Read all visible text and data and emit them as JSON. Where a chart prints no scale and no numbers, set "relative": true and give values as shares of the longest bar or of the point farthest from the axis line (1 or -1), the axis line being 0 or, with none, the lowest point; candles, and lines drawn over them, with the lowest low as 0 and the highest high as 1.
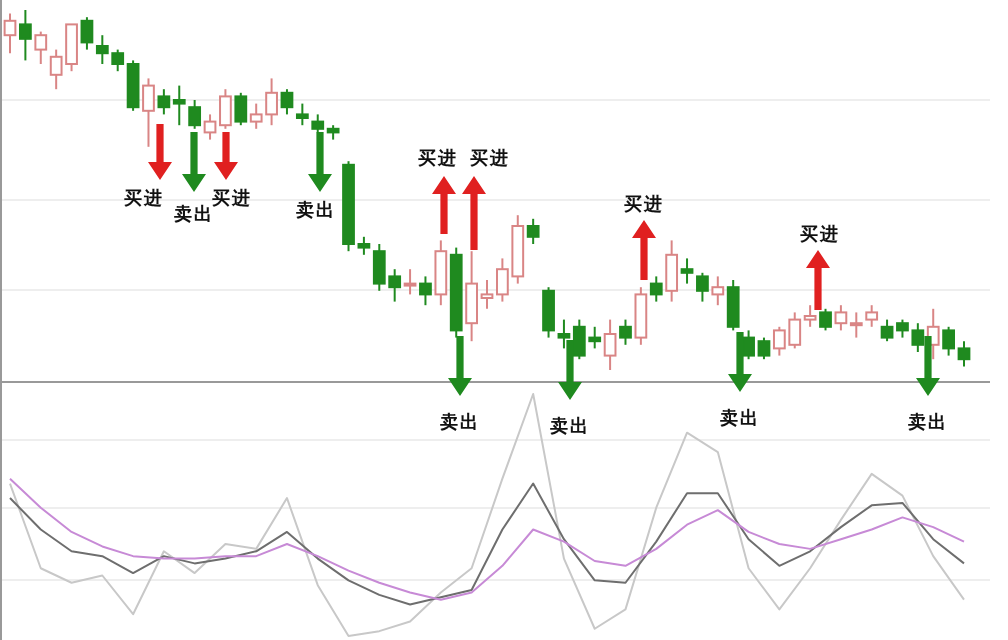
{
  "chart_data": [
    {
      "type": "candlestick",
      "relative": true,
      "categories": [
        null,
        null,
        null,
        null,
        null,
        null,
        null,
        null,
        null,
        null,
        null,
        null,
        null,
        null,
        null,
        null,
        null,
        null,
        null,
        null,
        null,
        null,
        null,
        null,
        null,
        null,
        null,
        null,
        null,
        null,
        null,
        null,
        null,
        null,
        null,
        null,
        null,
        null,
        null,
        null,
        null,
        null,
        null,
        null,
        null,
        null,
        null,
        null,
        null,
        null,
        null,
        null,
        null,
        null,
        null,
        null,
        null,
        null,
        null,
        null,
        null,
        null,
        null
      ],
      "ohlc": [
        [
          0.93,
          0.99,
          0.88,
          0.97
        ],
        [
          0.96,
          1.0,
          0.86,
          0.92
        ],
        [
          0.89,
          0.94,
          0.85,
          0.93
        ],
        [
          0.82,
          0.89,
          0.78,
          0.87
        ],
        [
          0.85,
          0.96,
          0.83,
          0.96
        ],
        [
          0.97,
          0.98,
          0.89,
          0.91
        ],
        [
          0.9,
          0.93,
          0.85,
          0.88
        ],
        [
          0.88,
          0.89,
          0.83,
          0.85
        ],
        [
          0.85,
          0.86,
          0.72,
          0.73
        ],
        [
          0.72,
          0.81,
          0.62,
          0.79
        ],
        [
          0.76,
          0.78,
          0.71,
          0.73
        ],
        [
          0.75,
          0.79,
          0.68,
          0.74
        ],
        [
          0.73,
          0.75,
          0.67,
          0.68
        ],
        [
          0.66,
          0.71,
          0.64,
          0.69
        ],
        [
          0.68,
          0.78,
          0.67,
          0.76
        ],
        [
          0.76,
          0.77,
          0.68,
          0.69
        ],
        [
          0.69,
          0.74,
          0.67,
          0.71
        ],
        [
          0.71,
          0.81,
          0.68,
          0.77
        ],
        [
          0.77,
          0.78,
          0.71,
          0.73
        ],
        [
          0.71,
          0.74,
          0.68,
          0.7
        ],
        [
          0.69,
          0.71,
          0.66,
          0.67
        ],
        [
          0.67,
          0.68,
          0.64,
          0.66
        ],
        [
          0.57,
          0.58,
          0.33,
          0.35
        ],
        [
          0.35,
          0.37,
          0.32,
          0.34
        ],
        [
          0.33,
          0.35,
          0.22,
          0.24
        ],
        [
          0.26,
          0.28,
          0.19,
          0.23
        ],
        [
          0.24,
          0.28,
          0.21,
          0.24
        ],
        [
          0.24,
          0.26,
          0.18,
          0.21
        ],
        [
          0.21,
          0.36,
          0.18,
          0.33
        ],
        [
          0.32,
          0.34,
          0.09,
          0.11
        ],
        [
          0.13,
          0.33,
          0.08,
          0.24
        ],
        [
          0.2,
          0.25,
          0.17,
          0.21
        ],
        [
          0.21,
          0.31,
          0.19,
          0.28
        ],
        [
          0.26,
          0.43,
          0.24,
          0.4
        ],
        [
          0.4,
          0.42,
          0.35,
          0.37
        ],
        [
          0.22,
          0.23,
          0.09,
          0.11
        ],
        [
          0.1,
          0.14,
          0.06,
          0.09
        ],
        [
          0.12,
          0.14,
          0.03,
          0.04
        ],
        [
          0.09,
          0.12,
          0.06,
          0.08
        ],
        [
          0.04,
          0.14,
          0.0,
          0.1
        ],
        [
          0.12,
          0.14,
          0.07,
          0.09
        ],
        [
          0.09,
          0.23,
          0.07,
          0.21
        ],
        [
          0.24,
          0.26,
          0.19,
          0.21
        ],
        [
          0.22,
          0.36,
          0.19,
          0.32
        ],
        [
          0.28,
          0.31,
          0.24,
          0.27
        ],
        [
          0.26,
          0.27,
          0.19,
          0.22
        ],
        [
          0.21,
          0.26,
          0.18,
          0.23
        ],
        [
          0.23,
          0.25,
          0.11,
          0.12
        ],
        [
          0.09,
          0.11,
          0.03,
          0.04
        ],
        [
          0.08,
          0.09,
          0.03,
          0.04
        ],
        [
          0.06,
          0.12,
          0.04,
          0.11
        ],
        [
          0.07,
          0.16,
          0.06,
          0.14
        ],
        [
          0.14,
          0.18,
          0.12,
          0.15
        ],
        [
          0.16,
          0.17,
          0.11,
          0.12
        ],
        [
          0.13,
          0.18,
          0.11,
          0.16
        ],
        [
          0.13,
          0.16,
          0.09,
          0.13
        ],
        [
          0.14,
          0.18,
          0.12,
          0.16
        ],
        [
          0.12,
          0.14,
          0.08,
          0.09
        ],
        [
          0.13,
          0.14,
          0.09,
          0.11
        ],
        [
          0.11,
          0.13,
          0.05,
          0.07
        ],
        [
          0.07,
          0.17,
          0.03,
          0.12
        ],
        [
          0.11,
          0.12,
          0.04,
          0.06
        ],
        [
          0.06,
          0.08,
          0.01,
          0.03
        ]
      ],
      "annotations": [
        "买进",
        "卖出",
        "买进",
        "卖出",
        "买进",
        "卖出",
        "买进",
        "卖出",
        "买进",
        "卖出",
        "买进",
        "卖出"
      ]
    },
    {
      "type": "line",
      "relative": true,
      "categories": [
        null,
        null,
        null,
        null,
        null,
        null,
        null,
        null,
        null,
        null,
        null,
        null,
        null,
        null,
        null,
        null,
        null,
        null,
        null,
        null,
        null,
        null,
        null,
        null,
        null,
        null,
        null,
        null,
        null,
        null,
        null,
        null
      ],
      "series": [
        {
          "color": "#c8c8c8",
          "values": [
            0.63,
            0.28,
            0.22,
            0.25,
            0.09,
            0.35,
            0.26,
            0.38,
            0.36,
            0.57,
            0.21,
            0.0,
            0.02,
            0.06,
            0.18,
            0.28,
            0.65,
            1.0,
            0.32,
            0.03,
            0.11,
            0.53,
            0.84,
            0.76,
            0.28,
            0.11,
            0.28,
            0.48,
            0.67,
            0.58,
            0.33,
            0.15
          ]
        },
        {
          "color": "#6e6e6e",
          "values": [
            0.57,
            0.44,
            0.35,
            0.33,
            0.26,
            0.33,
            0.3,
            0.32,
            0.35,
            0.43,
            0.32,
            0.23,
            0.17,
            0.13,
            0.16,
            0.19,
            0.44,
            0.63,
            0.4,
            0.23,
            0.22,
            0.39,
            0.59,
            0.59,
            0.4,
            0.29,
            0.35,
            0.45,
            0.54,
            0.55,
            0.4,
            0.3
          ]
        },
        {
          "color": "#c78ad6",
          "values": [
            0.65,
            0.53,
            0.43,
            0.37,
            0.33,
            0.32,
            0.32,
            0.33,
            0.33,
            0.38,
            0.33,
            0.27,
            0.22,
            0.18,
            0.15,
            0.18,
            0.29,
            0.44,
            0.39,
            0.31,
            0.29,
            0.36,
            0.46,
            0.52,
            0.43,
            0.38,
            0.36,
            0.4,
            0.44,
            0.49,
            0.45,
            0.39
          ]
        }
      ]
    }
  ]
}
